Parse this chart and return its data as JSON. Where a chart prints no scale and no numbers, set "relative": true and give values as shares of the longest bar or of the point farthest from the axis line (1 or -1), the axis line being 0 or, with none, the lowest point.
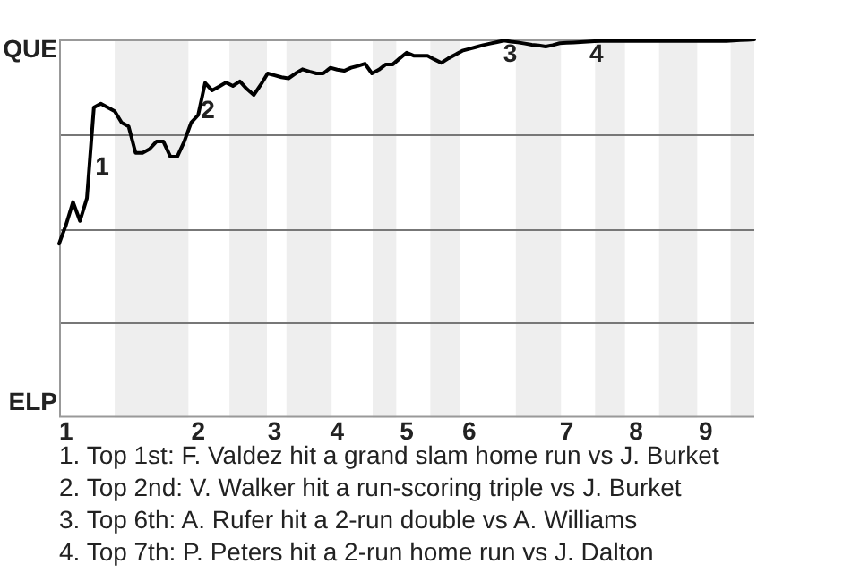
{
  "chart_data": {
    "type": "line",
    "relative": true,
    "categories": [
      null,
      "1",
      null,
      null,
      null,
      null,
      null,
      null,
      null,
      null,
      null,
      null,
      null,
      null,
      null,
      null,
      null,
      null,
      null,
      null,
      "2",
      null,
      null,
      null,
      null,
      null,
      null,
      null,
      null,
      null,
      null,
      "3",
      null,
      null,
      null,
      null,
      null,
      null,
      null,
      null,
      "4",
      null,
      null,
      null,
      null,
      null,
      null,
      null,
      null,
      null,
      "5",
      null,
      null,
      null,
      null,
      null,
      null,
      null,
      null,
      "6",
      null,
      null,
      null,
      null,
      null,
      null,
      null,
      null,
      null,
      null,
      null,
      null,
      null,
      "7",
      null,
      null,
      null,
      null,
      null,
      null,
      null,
      null,
      null,
      "8",
      null,
      null,
      null,
      null,
      null,
      null,
      null,
      null,
      null,
      "9",
      null,
      null,
      null,
      null,
      null,
      null,
      null
    ],
    "series": [
      {
        "color": "#000000",
        "values": [
          0.46,
          0.51,
          0.57,
          0.52,
          0.58,
          0.82,
          0.83,
          0.82,
          0.81,
          0.78,
          0.77,
          0.7,
          0.7,
          0.71,
          0.73,
          0.73,
          0.69,
          0.69,
          0.73,
          0.78,
          0.8,
          0.885,
          0.865,
          0.875,
          0.886,
          0.877,
          0.889,
          0.869,
          0.853,
          0.88,
          0.91,
          0.905,
          0.9,
          0.897,
          0.91,
          0.921,
          0.915,
          0.91,
          0.91,
          0.925,
          0.92,
          0.917,
          0.925,
          0.93,
          0.936,
          0.91,
          0.92,
          0.934,
          0.934,
          0.95,
          0.965,
          0.957,
          0.957,
          0.957,
          0.947,
          0.938,
          0.95,
          0.96,
          0.97,
          0.975,
          0.98,
          0.985,
          0.989,
          0.993,
          0.997,
          0.994,
          0.992,
          0.989,
          0.986,
          0.984,
          0.981,
          0.985,
          0.99,
          0.991,
          0.992,
          0.993,
          0.994,
          0.995,
          0.996,
          0.996,
          0.996,
          0.996,
          0.996,
          0.996,
          0.996,
          0.996,
          0.996,
          0.996,
          0.996,
          0.996,
          0.996,
          0.996,
          0.996,
          0.996,
          0.996,
          0.996,
          0.996,
          0.997,
          0.998,
          0.999,
          1
        ]
      }
    ],
    "marker": "none",
    "ref_lines": [
      {
        "axis": "y",
        "value": 0.25,
        "color": "#777777"
      },
      {
        "axis": "y",
        "value": 0.5,
        "color": "#777777"
      },
      {
        "axis": "y",
        "value": 0.75,
        "color": "#777777"
      }
    ],
    "annotations": [
      "QUE",
      "ELP",
      "1",
      "2",
      "3",
      "4",
      "1. Top 1st: F. Valdez hit a grand slam home run vs J. Burket",
      "2. Top 2nd: V. Walker hit a run-scoring triple vs J. Burket",
      "3. Top 6th: A. Rufer hit a 2-run double vs A. Williams",
      "4. Top 7th: P. Peters hit a 2-run home run vs J. Dalton"
    ]
  }
}
